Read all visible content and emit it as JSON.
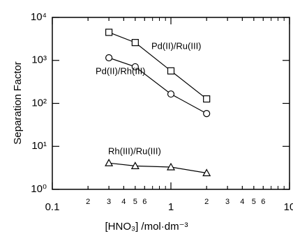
{
  "chart_data": {
    "type": "line",
    "xlabel": "[HNO₃] /mol·dm⁻³",
    "ylabel": "Separation Factor",
    "xscale": "log",
    "yscale": "log",
    "color": "#000000",
    "xlim": [
      0.1,
      10
    ],
    "ylim": [
      1,
      10000
    ],
    "xticks": [
      {
        "value": 0.1,
        "label": "0.1"
      },
      {
        "value": 0.2,
        "label": "2"
      },
      {
        "value": 0.3,
        "label": "3"
      },
      {
        "value": 0.4,
        "label": "4"
      },
      {
        "value": 0.5,
        "label": "5"
      },
      {
        "value": 0.6,
        "label": "6"
      },
      1,
      2,
      3,
      4,
      5,
      6,
      10
    ],
    "xminor_ticks": [
      0.7,
      0.8,
      0.9,
      7,
      8,
      9
    ],
    "yticks": [
      {
        "value": 1,
        "label": "10⁰"
      },
      {
        "value": 10,
        "label": "10¹"
      },
      {
        "value": 100,
        "label": "10²"
      },
      {
        "value": 1000,
        "label": "10³"
      },
      {
        "value": 10000,
        "label": "10⁴"
      }
    ],
    "x": [
      0.3,
      0.5,
      1,
      2
    ],
    "series": [
      {
        "name": "Pd(II)/Ru(III)",
        "marker": "square",
        "values": [
          4500,
          2600,
          570,
          127
        ]
      },
      {
        "name": "Pd(II)/Rh(III)",
        "marker": "circle",
        "values": [
          1150,
          710,
          165,
          58
        ]
      },
      {
        "name": "Rh(III)/Ru(III)",
        "marker": "triangle",
        "values": [
          4.1,
          3.5,
          3.3,
          2.4
        ]
      }
    ]
  }
}
